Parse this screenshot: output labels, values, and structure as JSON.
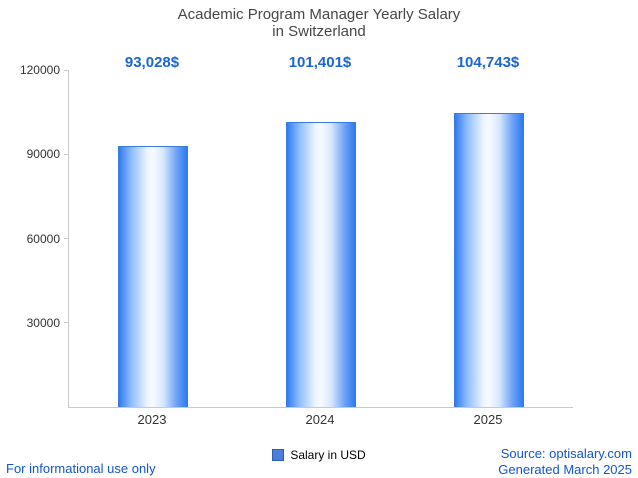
{
  "title": {
    "line1": "Academic Program Manager Yearly Salary",
    "line2": "in Switzerland"
  },
  "chart_data": {
    "type": "bar",
    "title": "Academic Program Manager Yearly Salary in Switzerland",
    "categories": [
      "2023",
      "2024",
      "2025"
    ],
    "values": [
      93028,
      101401,
      104743
    ],
    "value_labels": [
      "93,028$",
      "101,401$",
      "104,743$"
    ],
    "ylim": [
      0,
      120000
    ],
    "yticks": [
      30000,
      60000,
      90000,
      120000
    ],
    "ytick_labels": [
      "30000",
      "60000",
      "90000",
      "120000"
    ],
    "xlabel": "",
    "ylabel": "",
    "grid": "off",
    "legend_position": "bottom-center",
    "legend": "Salary in USD",
    "bar_edge_color": "#2e7bf0",
    "value_label_color": "#1b66d2"
  },
  "footer": {
    "left": "For informational use only",
    "source": "Source: optisalary.com",
    "generated": "Generated March 2025"
  }
}
